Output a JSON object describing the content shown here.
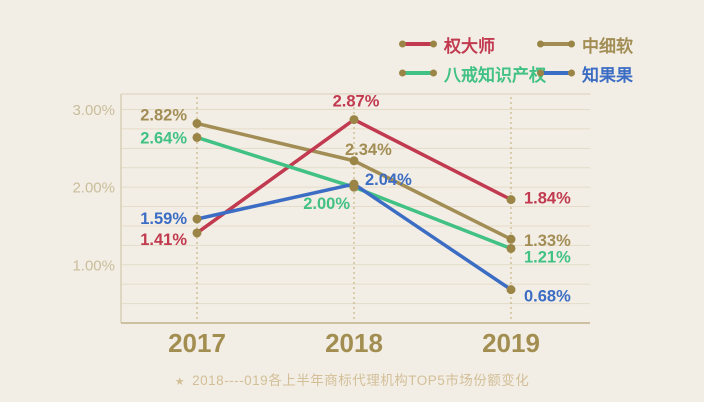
{
  "colors": {
    "background": "#f3eee5",
    "grid_line": "#e4dcc8",
    "frame_line": "#d8cfb6",
    "axis_bottom_line": "#ccc0a0",
    "dotted_guide_line": "#c9b483",
    "y_tick_text": "#c9bd9a",
    "x_tick_text": "#a38e52",
    "caption_text": "#d2bf98",
    "point_marker": "#9a8547"
  },
  "legend": {
    "items": [
      {
        "label": "权大师",
        "color": "#c13a4f"
      },
      {
        "label": "中细软",
        "color": "#a28d55"
      },
      {
        "label": "八戒知识产权",
        "color": "#41c184"
      },
      {
        "label": "知果果",
        "color": "#3c6dc4"
      }
    ],
    "marker_color": "#9a8547"
  },
  "chart_data": {
    "type": "line",
    "categories": [
      "2017",
      "2018",
      "2019"
    ],
    "series": [
      {
        "name": "权大师",
        "color": "#c13a4f",
        "values": [
          1.41,
          2.87,
          1.84
        ],
        "labels": [
          "1.41%",
          "2.87%",
          "1.84%"
        ]
      },
      {
        "name": "中细软",
        "color": "#a28d55",
        "values": [
          2.82,
          2.34,
          1.33
        ],
        "labels": [
          "2.82%",
          "2.34%",
          "1.33%"
        ]
      },
      {
        "name": "八戒知识产权",
        "color": "#41c184",
        "values": [
          2.64,
          2.0,
          1.21
        ],
        "labels": [
          "2.64%",
          "2.00%",
          "1.21%"
        ]
      },
      {
        "name": "知果果",
        "color": "#3c6dc4",
        "values": [
          1.59,
          2.04,
          0.68
        ],
        "labels": [
          "1.59%",
          "2.04%",
          "0.68%"
        ]
      }
    ],
    "y_ticks": [
      {
        "value": 3,
        "label": "3.00%"
      },
      {
        "value": 2,
        "label": "2.00%"
      },
      {
        "value": 1,
        "label": "1.00%"
      }
    ],
    "ylim": [
      0.25,
      3.2
    ],
    "grid_step": 0.25,
    "grid": true,
    "legend_position": "top-right",
    "marker_color": "#9a8547"
  },
  "caption": {
    "star": "★",
    "text": "2018----019各上半年商标代理机构TOP5市场份额变化"
  }
}
